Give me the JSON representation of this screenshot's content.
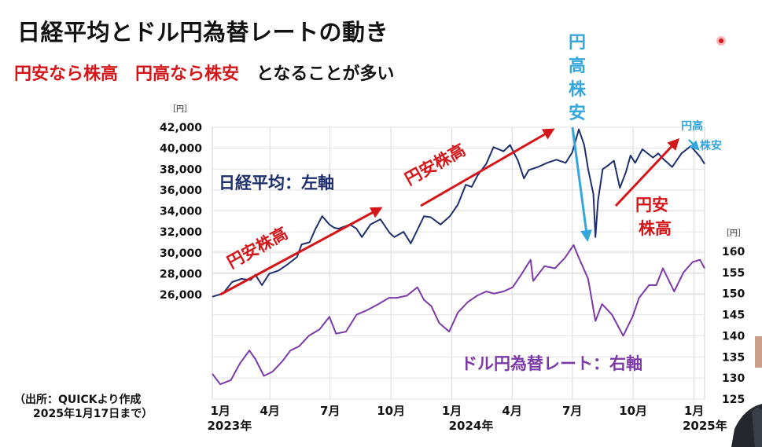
{
  "title": "日経平均とドル円為替レートの動き",
  "subtitle": {
    "part1": "円安なら株高",
    "part2": "円高なら株安",
    "part3": "となることが多い"
  },
  "vertical_annotation": [
    "円",
    "高",
    "株",
    "安"
  ],
  "source": {
    "line1": "（出所：QUICKより作成",
    "line2": "2025年1月17日まで）"
  },
  "chart_data": {
    "type": "line",
    "x_ticks": [
      {
        "label": "1月",
        "year": "2023年",
        "date": "2023-01"
      },
      {
        "label": "4月",
        "year": "",
        "date": "2023-04"
      },
      {
        "label": "7月",
        "year": "",
        "date": "2023-07"
      },
      {
        "label": "10月",
        "year": "",
        "date": "2023-10"
      },
      {
        "label": "1月",
        "year": "2024年",
        "date": "2024-01"
      },
      {
        "label": "4月",
        "year": "",
        "date": "2024-04"
      },
      {
        "label": "7月",
        "year": "",
        "date": "2024-07"
      },
      {
        "label": "10月",
        "year": "",
        "date": "2024-10"
      },
      {
        "label": "1月",
        "year": "2025年",
        "date": "2025-01"
      }
    ],
    "x_range": [
      "2023-01-04",
      "2025-01-17"
    ],
    "left_axis": {
      "unit": "［円］",
      "ylim": [
        26000,
        42000
      ],
      "ticks": [
        "26,000",
        "28,000",
        "30,000",
        "32,000",
        "34,000",
        "36,000",
        "38,000",
        "40,000",
        "42,000"
      ]
    },
    "right_axis": {
      "unit": "［円］",
      "ylim": [
        125,
        160
      ],
      "ticks": [
        "125",
        "130",
        "135",
        "140",
        "145",
        "150",
        "155",
        "160"
      ]
    },
    "grid": true,
    "series": [
      {
        "name": "日経平均：左軸",
        "axis": "left",
        "color": "#1f2f6e",
        "x": [
          "2023-01-04",
          "2023-01-20",
          "2023-02-03",
          "2023-02-17",
          "2023-03-03",
          "2023-03-10",
          "2023-03-20",
          "2023-03-31",
          "2023-04-14",
          "2023-04-28",
          "2023-05-12",
          "2023-05-19",
          "2023-05-31",
          "2023-06-09",
          "2023-06-19",
          "2023-06-30",
          "2023-07-07",
          "2023-07-14",
          "2023-07-31",
          "2023-08-10",
          "2023-08-18",
          "2023-08-31",
          "2023-09-15",
          "2023-09-29",
          "2023-10-06",
          "2023-10-20",
          "2023-10-31",
          "2023-11-10",
          "2023-11-20",
          "2023-11-30",
          "2023-12-15",
          "2023-12-29",
          "2024-01-10",
          "2024-01-22",
          "2024-01-31",
          "2024-02-09",
          "2024-02-22",
          "2024-03-04",
          "2024-03-19",
          "2024-03-29",
          "2024-04-10",
          "2024-04-19",
          "2024-04-26",
          "2024-05-10",
          "2024-05-24",
          "2024-06-07",
          "2024-06-21",
          "2024-07-01",
          "2024-07-11",
          "2024-07-19",
          "2024-07-25",
          "2024-08-02",
          "2024-08-05",
          "2024-08-09",
          "2024-08-16",
          "2024-08-23",
          "2024-09-02",
          "2024-09-11",
          "2024-09-20",
          "2024-09-27",
          "2024-10-04",
          "2024-10-15",
          "2024-10-31",
          "2024-11-08",
          "2024-11-15",
          "2024-11-29",
          "2024-12-13",
          "2024-12-27",
          "2025-01-10",
          "2025-01-17"
        ],
        "values": [
          25800,
          26100,
          27200,
          27500,
          27400,
          27900,
          26900,
          28000,
          28300,
          28900,
          29600,
          30800,
          31000,
          32300,
          33500,
          32700,
          32400,
          32300,
          32700,
          32300,
          31500,
          32700,
          33200,
          31900,
          31500,
          32000,
          30900,
          32200,
          33500,
          33400,
          32700,
          33500,
          34600,
          36500,
          36300,
          37400,
          38500,
          40100,
          39700,
          40300,
          38800,
          37100,
          37900,
          38200,
          38600,
          38900,
          38600,
          39600,
          41800,
          40300,
          38000,
          35600,
          31500,
          35000,
          38000,
          38300,
          38800,
          36200,
          37700,
          39300,
          38600,
          39900,
          39100,
          39500,
          39000,
          38200,
          39500,
          40200,
          39200,
          38500
        ]
      },
      {
        "name": "ドル円為替レート：右軸",
        "axis": "right",
        "color": "#7b3aa6",
        "x": [
          "2023-01-04",
          "2023-01-16",
          "2023-02-01",
          "2023-02-15",
          "2023-03-01",
          "2023-03-10",
          "2023-03-23",
          "2023-04-05",
          "2023-04-20",
          "2023-05-02",
          "2023-05-15",
          "2023-05-30",
          "2023-06-15",
          "2023-06-30",
          "2023-07-10",
          "2023-07-25",
          "2023-08-10",
          "2023-08-25",
          "2023-09-12",
          "2023-09-28",
          "2023-10-10",
          "2023-10-25",
          "2023-11-10",
          "2023-11-20",
          "2023-12-01",
          "2023-12-13",
          "2023-12-28",
          "2024-01-10",
          "2024-01-25",
          "2024-02-08",
          "2024-02-22",
          "2024-03-05",
          "2024-03-19",
          "2024-04-02",
          "2024-04-15",
          "2024-04-29",
          "2024-05-03",
          "2024-05-20",
          "2024-06-05",
          "2024-06-20",
          "2024-07-03",
          "2024-07-11",
          "2024-07-25",
          "2024-08-05",
          "2024-08-15",
          "2024-08-30",
          "2024-09-16",
          "2024-09-30",
          "2024-10-10",
          "2024-10-25",
          "2024-11-05",
          "2024-11-15",
          "2024-12-02",
          "2024-12-16",
          "2024-12-30",
          "2025-01-10",
          "2025-01-17"
        ],
        "values": [
          131.0,
          128.5,
          129.5,
          133.5,
          136.5,
          134.5,
          130.5,
          131.5,
          134.0,
          136.5,
          137.5,
          140.0,
          141.5,
          144.5,
          140.5,
          141.0,
          145.0,
          146.0,
          147.5,
          149.0,
          149.0,
          149.5,
          151.5,
          148.5,
          147.0,
          143.0,
          141.0,
          145.5,
          148.0,
          149.5,
          150.5,
          150.0,
          150.5,
          151.5,
          154.5,
          158.0,
          153.0,
          156.5,
          156.0,
          158.5,
          161.5,
          158.5,
          153.5,
          143.5,
          147.5,
          145.0,
          140.0,
          144.5,
          149.0,
          152.0,
          152.0,
          156.0,
          150.5,
          155.0,
          157.5,
          158.0,
          156.0
        ]
      }
    ],
    "annotations": [
      {
        "text": "円安株高",
        "color": "#d4161b"
      },
      {
        "text": "円安株高",
        "color": "#d4161b"
      },
      {
        "text": "円安",
        "color": "#d4161b"
      },
      {
        "text": "株高",
        "color": "#d4161b"
      },
      {
        "text": "円高",
        "color": "#33a6dc"
      },
      {
        "text": "株安",
        "color": "#33a6dc"
      },
      {
        "text": "日経平均：左軸",
        "color": "#1f2f6e"
      },
      {
        "text": "ドル円為替レート：右軸",
        "color": "#7b3aa6"
      }
    ]
  }
}
